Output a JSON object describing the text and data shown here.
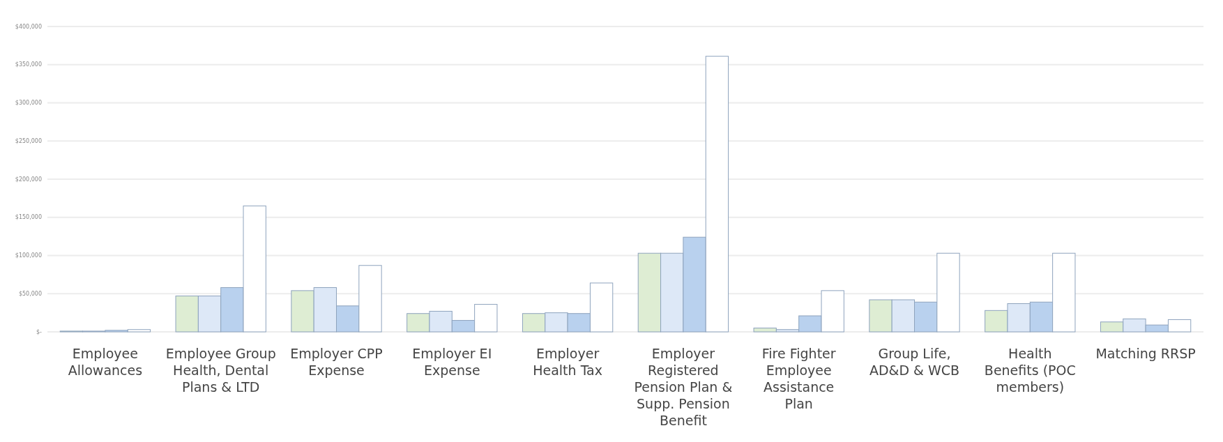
{
  "chart_data": {
    "type": "bar",
    "categories": [
      "Employee Allowances",
      "Employee Group Health, Dental Plans & LTD",
      "Employer CPP Expense",
      "Employer EI Expense",
      "Employer Health Tax",
      "Employer Registered Pension Plan & Supp. Pension Benefit",
      "Fire Fighter Employee Assistance Plan",
      "Group Life, AD&D & WCB",
      "Health Benefits (POC members)",
      "Matching RRSP"
    ],
    "series": [
      {
        "color": "#deedd3",
        "values": [
          1000,
          47000,
          54000,
          24000,
          24000,
          103000,
          5000,
          42000,
          28000,
          13000
        ]
      },
      {
        "color": "#dde8f7",
        "values": [
          1000,
          47000,
          58000,
          27000,
          25000,
          103000,
          3000,
          42000,
          37000,
          17000
        ]
      },
      {
        "color": "#b9d1ee",
        "values": [
          2000,
          58000,
          34000,
          15000,
          24000,
          124000,
          21000,
          39000,
          39000,
          9000
        ]
      },
      {
        "color": "#ffffff",
        "values": [
          3000,
          165000,
          87000,
          36000,
          64000,
          361000,
          54000,
          103000,
          103000,
          16000
        ]
      }
    ],
    "ylim": [
      0,
      400000
    ],
    "yticks": [
      {
        "value": 0,
        "label": "$-"
      },
      {
        "value": 50000,
        "label": "$50,000"
      },
      {
        "value": 100000,
        "label": "$100,000"
      },
      {
        "value": 150000,
        "label": "$150,000"
      },
      {
        "value": 200000,
        "label": "$200,000"
      },
      {
        "value": 250000,
        "label": "$250,000"
      },
      {
        "value": 300000,
        "label": "$300,000"
      },
      {
        "value": 350000,
        "label": "$350,000"
      },
      {
        "value": 400000,
        "label": "$400,000"
      }
    ],
    "grid": "y"
  }
}
